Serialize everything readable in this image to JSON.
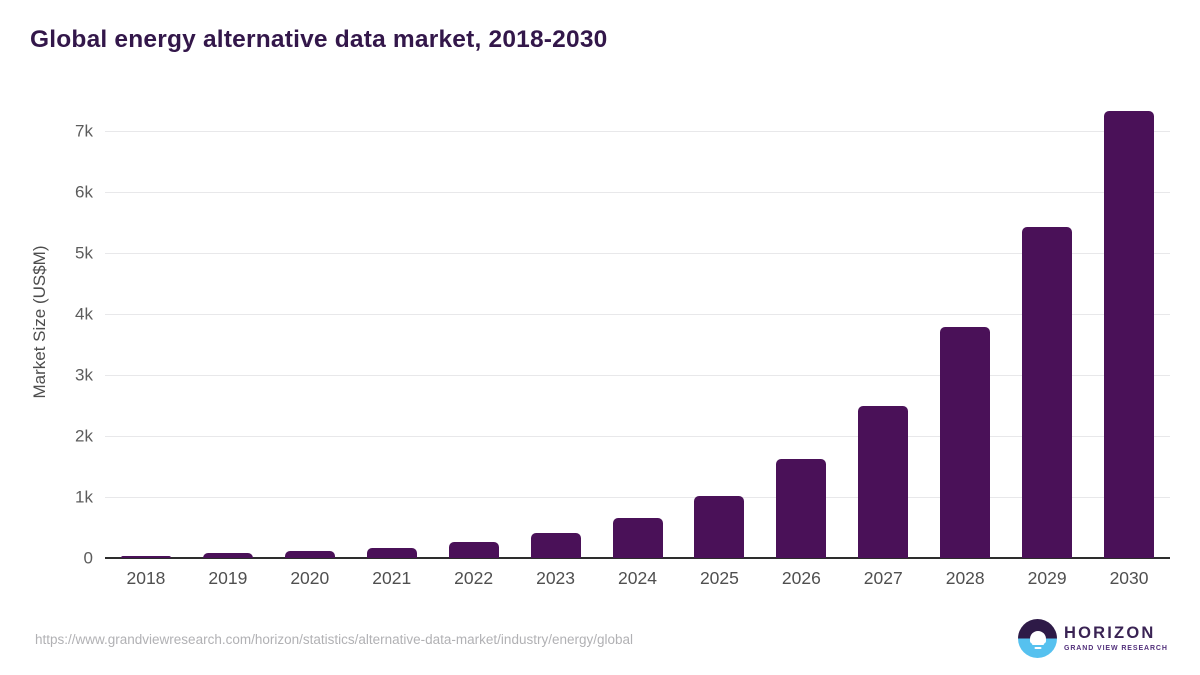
{
  "chart_data": {
    "type": "bar",
    "title": "Global energy alternative data market, 2018-2030",
    "categories": [
      "2018",
      "2019",
      "2020",
      "2021",
      "2022",
      "2023",
      "2024",
      "2025",
      "2026",
      "2027",
      "2028",
      "2029",
      "2030"
    ],
    "values": [
      38,
      76,
      118,
      162,
      258,
      410,
      650,
      1010,
      1625,
      2490,
      3790,
      5420,
      7330
    ],
    "xlabel": "",
    "ylabel": "Market Size (US$M)",
    "ylim": [
      0,
      7500
    ],
    "yticks": {
      "values": [
        0,
        1000,
        2000,
        3000,
        4000,
        5000,
        6000,
        7000
      ],
      "labels": [
        "0",
        "1k",
        "2k",
        "3k",
        "4k",
        "5k",
        "6k",
        "7k"
      ]
    },
    "grid": "horizontal",
    "legend": "none",
    "bar_color": "#4a1158"
  },
  "footer": {
    "source_url": "https://www.grandviewresearch.com/horizon/statistics/alternative-data-market/industry/energy/global",
    "logo": {
      "title": "HORIZON",
      "subtitle": "GRAND VIEW RESEARCH"
    }
  },
  "colors": {
    "title_text": "#33174a",
    "bar": "#4a1158",
    "gridline": "#e8e8ea",
    "baseline": "#2d2d2d",
    "tick_text": "#5c5c5c",
    "axis_title_text": "#4d4d4d",
    "url_text": "#b1b1b4",
    "logo_purple": "#2e1a47",
    "logo_blue": "#56c1ef"
  }
}
